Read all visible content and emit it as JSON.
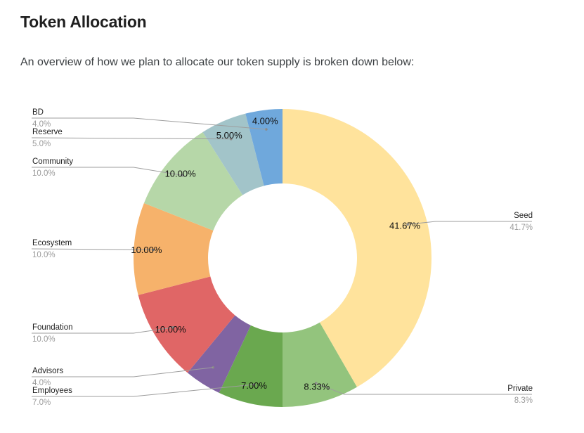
{
  "page": {
    "heading": "Token Allocation",
    "intro": "An overview of how we plan to allocate our token supply is broken down below:"
  },
  "chart_data": {
    "type": "pie",
    "donut": true,
    "title": "",
    "slices": [
      {
        "name": "Seed",
        "value": 41.67,
        "label": "41.67%",
        "legend_pct": "41.7%",
        "color": "#ffe39c",
        "side": "right"
      },
      {
        "name": "Private",
        "value": 8.33,
        "label": "8.33%",
        "legend_pct": "8.3%",
        "color": "#93c47d",
        "side": "right"
      },
      {
        "name": "Employees",
        "value": 7.0,
        "label": "7.00%",
        "legend_pct": "7.0%",
        "color": "#6aa84f",
        "side": "left"
      },
      {
        "name": "Advisors",
        "value": 4.0,
        "label": "",
        "legend_pct": "4.0%",
        "color": "#8064a2",
        "side": "left"
      },
      {
        "name": "Foundation",
        "value": 10.0,
        "label": "10.00%",
        "legend_pct": "10.0%",
        "color": "#e06666",
        "side": "left"
      },
      {
        "name": "Ecosystem",
        "value": 10.0,
        "label": "10.00%",
        "legend_pct": "10.0%",
        "color": "#f6b26b",
        "side": "left"
      },
      {
        "name": "Community",
        "value": 10.0,
        "label": "10.00%",
        "legend_pct": "10.0%",
        "color": "#b6d7a8",
        "side": "left"
      },
      {
        "name": "Reserve",
        "value": 5.0,
        "label": "5.00%",
        "legend_pct": "5.0%",
        "color": "#a2c4c9",
        "side": "left"
      },
      {
        "name": "BD",
        "value": 4.0,
        "label": "4.00%",
        "legend_pct": "4.0%",
        "color": "#6fa8dc",
        "side": "left"
      }
    ],
    "legend_placement": "labels-with-leader-lines"
  }
}
